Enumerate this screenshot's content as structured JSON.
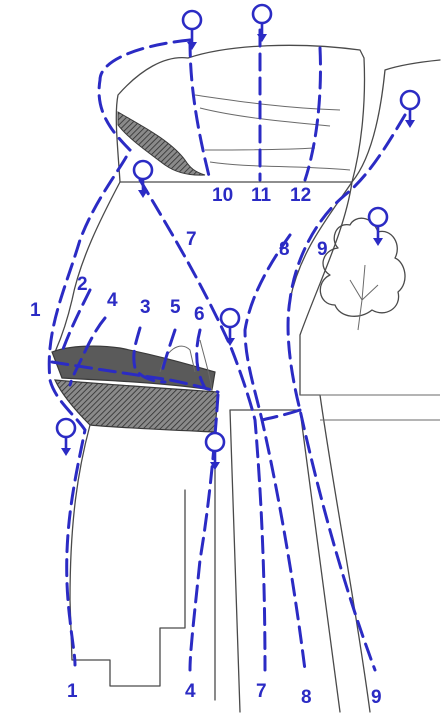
{
  "labels": {
    "top_10": "10",
    "top_11": "11",
    "top_12": "12",
    "mid_7": "7",
    "mid_8": "8",
    "mid_9": "9",
    "left_1": "1",
    "left_2": "2",
    "left_4": "4",
    "left_3": "3",
    "left_5": "5",
    "left_6": "6",
    "bottom_1": "1",
    "bottom_4": "4",
    "bottom_7": "7",
    "bottom_8": "8",
    "bottom_9": "9"
  },
  "colors": {
    "route": "#2b2bc4",
    "sketch": "#4a4a4a",
    "shade": "#5a5a5a",
    "background": "#ffffff"
  }
}
